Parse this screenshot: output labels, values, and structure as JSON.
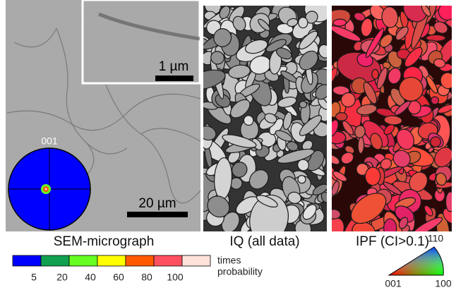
{
  "panels": {
    "sem": {
      "label": "SEM-micrograph",
      "inset_scale": "1 µm",
      "scale": "20 µm",
      "pole_figure": "001"
    },
    "iq": {
      "label": "IQ (all data)"
    },
    "ipf": {
      "label": "IPF (CI>0.1)",
      "triangle": {
        "top": "110",
        "left": "001",
        "right": "100"
      }
    }
  },
  "colorbar": {
    "colors": [
      "#0000ff",
      "#10a050",
      "#66ff22",
      "#ffff00",
      "#ff5a00",
      "#ff5060",
      "#ffe2da"
    ],
    "ticks": [
      5,
      20,
      40,
      60,
      80,
      100
    ],
    "caption": [
      "times",
      "probability"
    ]
  }
}
